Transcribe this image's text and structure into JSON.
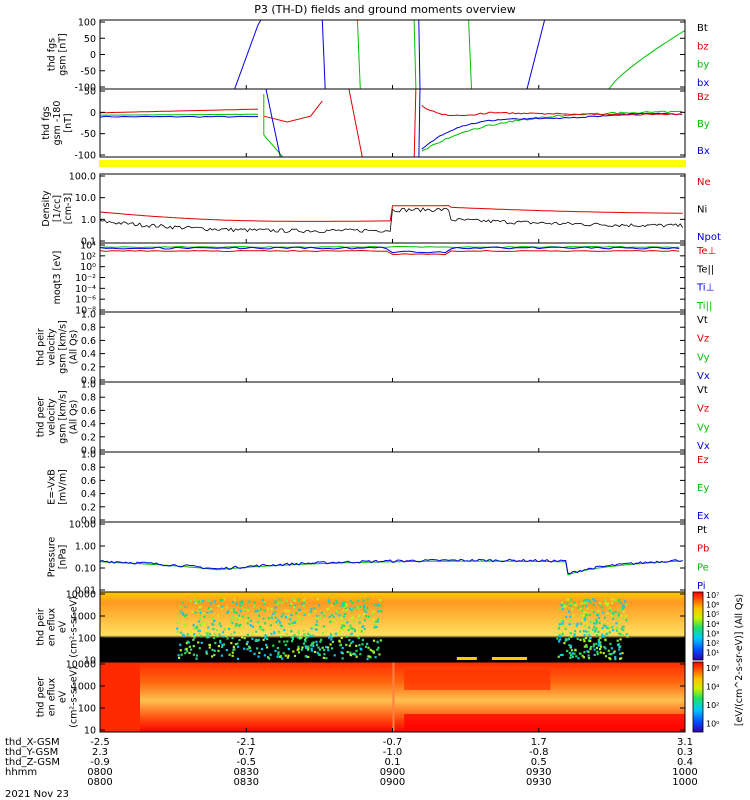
{
  "title": "P3 (TH-D) fields and ground moments overview",
  "date": "2021 Nov 23",
  "x_ticks": [
    "0800",
    "0830",
    "0900",
    "0930",
    "1000"
  ],
  "ephemeris": [
    {
      "label": "thd_X-GSM",
      "values": [
        "-2.5",
        "-2.1",
        "-0.7",
        "1.7",
        "3.1"
      ]
    },
    {
      "label": "thd_Y-GSM",
      "values": [
        "2.3",
        "0.7",
        "-1.0",
        "-0.8",
        "0.3"
      ]
    },
    {
      "label": "thd_Z-GSM",
      "values": [
        "-0.9",
        "-0.5",
        "0.1",
        "0.5",
        "0.4"
      ]
    },
    {
      "label": "hhmm",
      "values": [
        "0800",
        "0830",
        "0900",
        "0930",
        "1000"
      ]
    }
  ],
  "colors": {
    "black": "#000000",
    "red": "#e00000",
    "green": "#00c000",
    "blue": "#0000e0",
    "yellow": "#ffff00"
  },
  "colorbar": {
    "label": "[eV/(cm^2-s-sr-eV)] (All Qs)",
    "top_ticks": [
      "10⁷",
      "10⁶",
      "10⁵",
      "10⁴",
      "10³",
      "10²",
      "10¹"
    ],
    "bottom_ticks": [
      "10⁶",
      "10⁴",
      "10²",
      "10⁰"
    ]
  },
  "chart_data": [
    {
      "type": "line",
      "ylabel": "thd fgs gsm [nT]",
      "yticks": [
        "100",
        "50",
        "0",
        "-50",
        "-100"
      ],
      "ylim": [
        -100,
        100
      ],
      "legend": [
        {
          "name": "Bt",
          "color": "black"
        },
        {
          "name": "bz",
          "color": "red"
        },
        {
          "name": "by",
          "color": "green"
        },
        {
          "name": "bx",
          "color": "blue"
        }
      ]
    },
    {
      "type": "line",
      "ylabel": "thd fgs gsm -180 [nT]",
      "yticks": [
        "50",
        "0",
        "-50",
        "-100"
      ],
      "ylim": [
        -125,
        75
      ],
      "legend": [
        {
          "name": "Bz",
          "color": "red"
        },
        {
          "name": "By",
          "color": "green"
        },
        {
          "name": "Bx",
          "color": "blue"
        }
      ]
    },
    {
      "type": "line",
      "ylabel": "Density [1/cc] [cm-3]",
      "yticks": [
        "100.0",
        "10.0",
        "1.0",
        "0.1"
      ],
      "yscale": "log",
      "legend": [
        {
          "name": "Ne",
          "color": "red"
        },
        {
          "name": "Ni",
          "color": "black"
        },
        {
          "name": "Npot",
          "color": "blue"
        }
      ]
    },
    {
      "type": "line",
      "ylabel": "moqt3 [eV]",
      "yticks": [
        "10⁴",
        "10²",
        "10⁰",
        "10⁻²",
        "10⁻⁴",
        "10⁻⁶",
        "10⁻⁸"
      ],
      "yscale": "log",
      "legend": [
        {
          "name": "Te⊥",
          "color": "red"
        },
        {
          "name": "Te||",
          "color": "black"
        },
        {
          "name": "Ti⊥",
          "color": "blue"
        },
        {
          "name": "Ti||",
          "color": "green"
        }
      ]
    },
    {
      "type": "line",
      "ylabel": "thd peir velocity gsm [km/s] (All Qs)",
      "yticks": [
        "1.0",
        "0.8",
        "0.6",
        "0.4",
        "0.2",
        "0.0"
      ],
      "ylim": [
        0,
        1
      ],
      "legend": [
        {
          "name": "Vt",
          "color": "black"
        },
        {
          "name": "Vz",
          "color": "red"
        },
        {
          "name": "Vy",
          "color": "green"
        },
        {
          "name": "Vx",
          "color": "blue"
        }
      ]
    },
    {
      "type": "line",
      "ylabel": "thd peer velocity gsm [km/s] (All Qs)",
      "yticks": [
        "1.0",
        "0.8",
        "0.6",
        "0.4",
        "0.2",
        "0.0"
      ],
      "ylim": [
        0,
        1
      ],
      "legend": [
        {
          "name": "Vt",
          "color": "black"
        },
        {
          "name": "Vz",
          "color": "red"
        },
        {
          "name": "Vy",
          "color": "green"
        },
        {
          "name": "Vx",
          "color": "blue"
        }
      ]
    },
    {
      "type": "line",
      "ylabel": "E=-VxB [mV/m]",
      "yticks": [
        "1.0",
        "0.8",
        "0.6",
        "0.4",
        "0.2",
        "0.0"
      ],
      "ylim": [
        0,
        1
      ],
      "legend": [
        {
          "name": "Ez",
          "color": "red"
        },
        {
          "name": "Ey",
          "color": "green"
        },
        {
          "name": "Ex",
          "color": "blue"
        }
      ]
    },
    {
      "type": "line",
      "ylabel": "Pressure [nPa]",
      "yticks": [
        "10.00",
        "1.00",
        "0.10",
        "0.01"
      ],
      "yscale": "log",
      "legend": [
        {
          "name": "Pt",
          "color": "black"
        },
        {
          "name": "Pb",
          "color": "red"
        },
        {
          "name": "Pe",
          "color": "green"
        },
        {
          "name": "Pi",
          "color": "blue"
        }
      ]
    },
    {
      "type": "heatmap",
      "ylabel": "thd peir en eflux eV (cm²-s-sr-eV)",
      "yticks": [
        "10000",
        "1000",
        "100",
        "10"
      ],
      "yscale": "log"
    },
    {
      "type": "heatmap",
      "ylabel": "thd peer en eflux eV (cm²-s-sr-eV)",
      "yticks": [
        "10000",
        "1000",
        "100",
        "10"
      ],
      "yscale": "log"
    }
  ]
}
